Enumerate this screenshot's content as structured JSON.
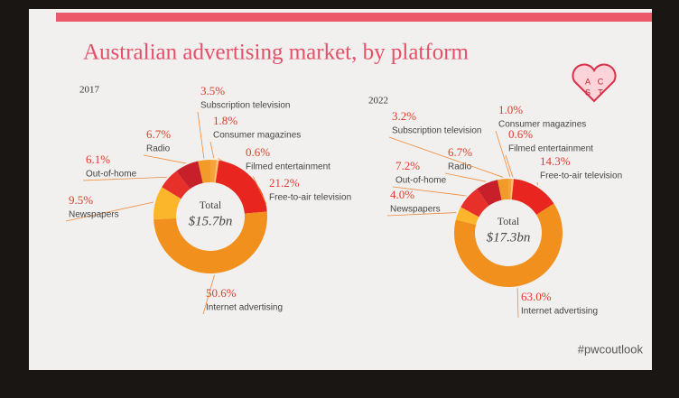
{
  "title": "Australian advertising market, by platform",
  "hashtag": "#pwcoutlook",
  "logo": [
    "A",
    "C",
    "S",
    "T"
  ],
  "chart_data": [
    {
      "type": "pie",
      "title": "2017",
      "center_label": "Total",
      "center_value": "$15.7bn",
      "categories": [
        "Consumer magazines",
        "Filmed entertainment",
        "Free-to-air television",
        "Internet advertising",
        "Newspapers",
        "Out-of-home",
        "Radio",
        "Subscription television"
      ],
      "values": [
        1.8,
        0.6,
        21.2,
        50.6,
        9.5,
        6.1,
        6.7,
        3.5
      ],
      "value_labels": [
        "1.8%",
        "0.6%",
        "21.2%",
        "50.6%",
        "9.5%",
        "6.1%",
        "6.7%",
        "3.5%"
      ],
      "colors": [
        "#f6a43a",
        "#f9c070",
        "#e8261f",
        "#f2901e",
        "#fbb62b",
        "#e8302a",
        "#c8202a",
        "#f29a2a"
      ]
    },
    {
      "type": "pie",
      "title": "2022",
      "center_label": "Total",
      "center_value": "$17.3bn",
      "categories": [
        "Consumer magazines",
        "Filmed entertainment",
        "Free-to-air television",
        "Internet advertising",
        "Newspapers",
        "Out-of-home",
        "Radio",
        "Subscription television"
      ],
      "values": [
        1.0,
        0.6,
        14.3,
        63.0,
        4.0,
        7.2,
        6.7,
        3.2
      ],
      "value_labels": [
        "1.0%",
        "0.6%",
        "14.3%",
        "63.0%",
        "4.0%",
        "7.2%",
        "6.7%",
        "3.2%"
      ],
      "colors": [
        "#f6a43a",
        "#f9c070",
        "#e8261f",
        "#f2901e",
        "#fbb62b",
        "#e8302a",
        "#c8202a",
        "#f29a2a"
      ]
    }
  ]
}
